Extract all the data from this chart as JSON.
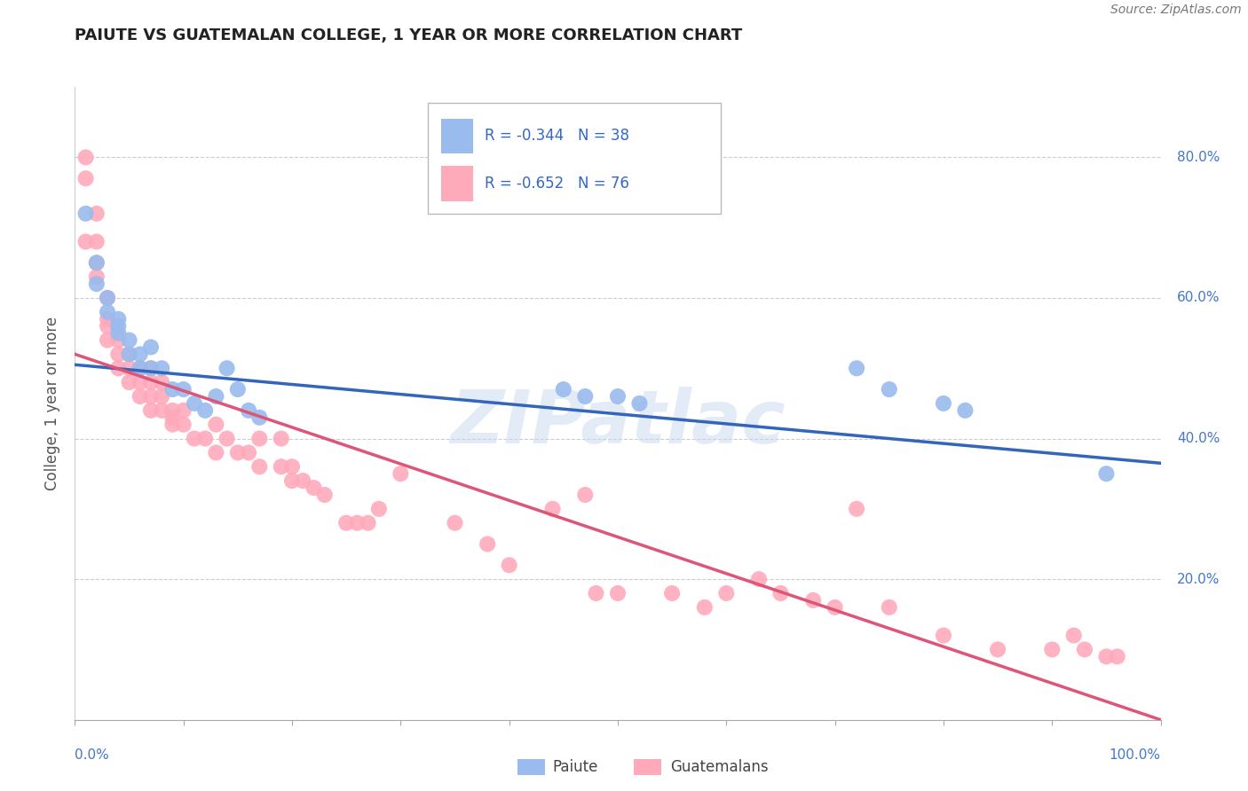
{
  "title": "PAIUTE VS GUATEMALAN COLLEGE, 1 YEAR OR MORE CORRELATION CHART",
  "source": "Source: ZipAtlas.com",
  "ylabel": "College, 1 year or more",
  "ytick_labels": [
    "0.0%",
    "20.0%",
    "40.0%",
    "60.0%",
    "80.0%"
  ],
  "ytick_values": [
    0.0,
    0.2,
    0.4,
    0.6,
    0.8
  ],
  "xlim": [
    0.0,
    1.0
  ],
  "ylim": [
    0.0,
    0.9
  ],
  "paiute_x": [
    0.01,
    0.02,
    0.02,
    0.03,
    0.03,
    0.04,
    0.04,
    0.04,
    0.05,
    0.05,
    0.06,
    0.06,
    0.07,
    0.07,
    0.08,
    0.09,
    0.1,
    0.11,
    0.12,
    0.13,
    0.14,
    0.15,
    0.16,
    0.17,
    0.45,
    0.47,
    0.5,
    0.52,
    0.72,
    0.75,
    0.8,
    0.82,
    0.95
  ],
  "paiute_y": [
    0.72,
    0.65,
    0.62,
    0.6,
    0.58,
    0.57,
    0.56,
    0.55,
    0.54,
    0.52,
    0.52,
    0.5,
    0.5,
    0.53,
    0.5,
    0.47,
    0.47,
    0.45,
    0.44,
    0.46,
    0.5,
    0.47,
    0.44,
    0.43,
    0.47,
    0.46,
    0.46,
    0.45,
    0.5,
    0.47,
    0.45,
    0.44,
    0.35
  ],
  "guate_x": [
    0.01,
    0.01,
    0.01,
    0.02,
    0.02,
    0.02,
    0.02,
    0.03,
    0.03,
    0.03,
    0.03,
    0.04,
    0.04,
    0.04,
    0.05,
    0.05,
    0.05,
    0.06,
    0.06,
    0.06,
    0.07,
    0.07,
    0.07,
    0.07,
    0.08,
    0.08,
    0.08,
    0.09,
    0.09,
    0.09,
    0.1,
    0.1,
    0.11,
    0.12,
    0.13,
    0.13,
    0.14,
    0.15,
    0.16,
    0.17,
    0.17,
    0.19,
    0.19,
    0.2,
    0.2,
    0.21,
    0.22,
    0.23,
    0.25,
    0.26,
    0.27,
    0.28,
    0.3,
    0.35,
    0.38,
    0.4,
    0.44,
    0.47,
    0.48,
    0.5,
    0.55,
    0.58,
    0.6,
    0.63,
    0.65,
    0.68,
    0.7,
    0.72,
    0.75,
    0.8,
    0.85,
    0.9,
    0.92,
    0.93,
    0.95,
    0.96
  ],
  "guate_y": [
    0.8,
    0.77,
    0.68,
    0.72,
    0.68,
    0.65,
    0.63,
    0.6,
    0.57,
    0.56,
    0.54,
    0.54,
    0.52,
    0.5,
    0.5,
    0.52,
    0.48,
    0.5,
    0.48,
    0.46,
    0.5,
    0.48,
    0.46,
    0.44,
    0.48,
    0.46,
    0.44,
    0.44,
    0.43,
    0.42,
    0.44,
    0.42,
    0.4,
    0.4,
    0.42,
    0.38,
    0.4,
    0.38,
    0.38,
    0.4,
    0.36,
    0.4,
    0.36,
    0.36,
    0.34,
    0.34,
    0.33,
    0.32,
    0.28,
    0.28,
    0.28,
    0.3,
    0.35,
    0.28,
    0.25,
    0.22,
    0.3,
    0.32,
    0.18,
    0.18,
    0.18,
    0.16,
    0.18,
    0.2,
    0.18,
    0.17,
    0.16,
    0.3,
    0.16,
    0.12,
    0.1,
    0.1,
    0.12,
    0.1,
    0.09,
    0.09
  ],
  "blue_line_x": [
    0.0,
    1.0
  ],
  "blue_line_y": [
    0.505,
    0.365
  ],
  "pink_line_x": [
    0.0,
    1.0
  ],
  "pink_line_y": [
    0.52,
    0.0
  ],
  "blue_color": "#3366bb",
  "pink_color": "#dd5577",
  "dot_blue": "#99bbee",
  "dot_pink": "#ffaabb",
  "axis_color": "#4477cc",
  "grid_color": "#cccccc",
  "background_color": "#ffffff",
  "legend_R_color": "#3366cc"
}
